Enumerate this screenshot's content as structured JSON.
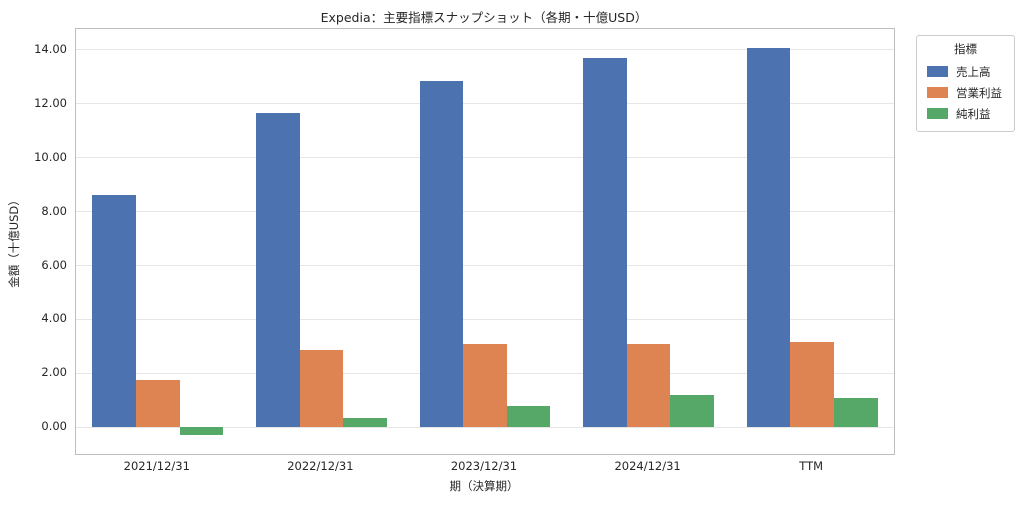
{
  "title": "Expedia：主要指標スナップショット（各期・十億USD）",
  "colors": {
    "grid": "#e6e6e6",
    "spine": "#bdbdbd",
    "text": "#262626",
    "background": "#ffffff"
  },
  "chart_data": {
    "type": "bar",
    "title": "Expedia：主要指標スナップショット（各期・十億USD）",
    "xlabel": "期（決算期）",
    "ylabel": "金額（十億USD）",
    "categories": [
      "2021/12/31",
      "2022/12/31",
      "2023/12/31",
      "2024/12/31",
      "TTM"
    ],
    "series": [
      {
        "name": "売上高",
        "color": "#4C72B0",
        "values": [
          8.6,
          11.67,
          12.84,
          13.69,
          14.05
        ]
      },
      {
        "name": "営業利益",
        "color": "#DD8452",
        "values": [
          1.75,
          2.85,
          3.08,
          3.08,
          3.15
        ]
      },
      {
        "name": "純利益",
        "color": "#55A868",
        "values": [
          -0.27,
          0.35,
          0.78,
          1.2,
          1.08
        ]
      }
    ],
    "ylim": [
      -0.99,
      14.77
    ],
    "y_tick_values": [
      0,
      2,
      4,
      6,
      8,
      10,
      12,
      14
    ],
    "y_tick_labels": [
      "0.00",
      "2.00",
      "4.00",
      "6.00",
      "8.00",
      "10.00",
      "12.00",
      "14.00"
    ],
    "grid": true,
    "legend_title": "指標",
    "legend_position": "upper-right-outside",
    "bar_group_width_fraction": 0.8
  }
}
